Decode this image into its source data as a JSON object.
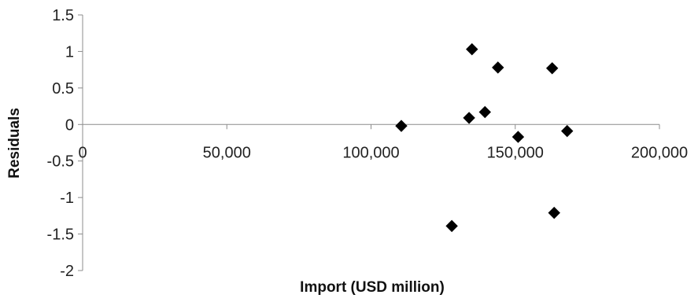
{
  "chart_data": {
    "type": "scatter",
    "title": "",
    "xlabel": "Import (USD million)",
    "ylabel": "Residuals",
    "xlim": [
      0,
      200000
    ],
    "ylim": [
      -2,
      1.5
    ],
    "x_ticks": [
      0,
      50000,
      100000,
      150000,
      200000
    ],
    "x_tick_labels": [
      "0",
      "50,000",
      "100,000",
      "150,000",
      "200,000"
    ],
    "y_ticks": [
      -2,
      -1.5,
      -1,
      -0.5,
      0,
      0.5,
      1,
      1.5
    ],
    "y_tick_labels": [
      "-2",
      "-1.5",
      "-1",
      "-0.5",
      "0",
      "0.5",
      "1",
      "1.5"
    ],
    "grid": false,
    "marker": "diamond",
    "marker_color": "#000000",
    "points": [
      {
        "x": 110500,
        "y": -0.02
      },
      {
        "x": 128000,
        "y": -1.39
      },
      {
        "x": 134000,
        "y": 0.09
      },
      {
        "x": 135000,
        "y": 1.03
      },
      {
        "x": 139500,
        "y": 0.17
      },
      {
        "x": 144000,
        "y": 0.78
      },
      {
        "x": 151000,
        "y": -0.17
      },
      {
        "x": 162800,
        "y": 0.77
      },
      {
        "x": 163500,
        "y": -1.21
      },
      {
        "x": 168000,
        "y": -0.09
      }
    ]
  }
}
